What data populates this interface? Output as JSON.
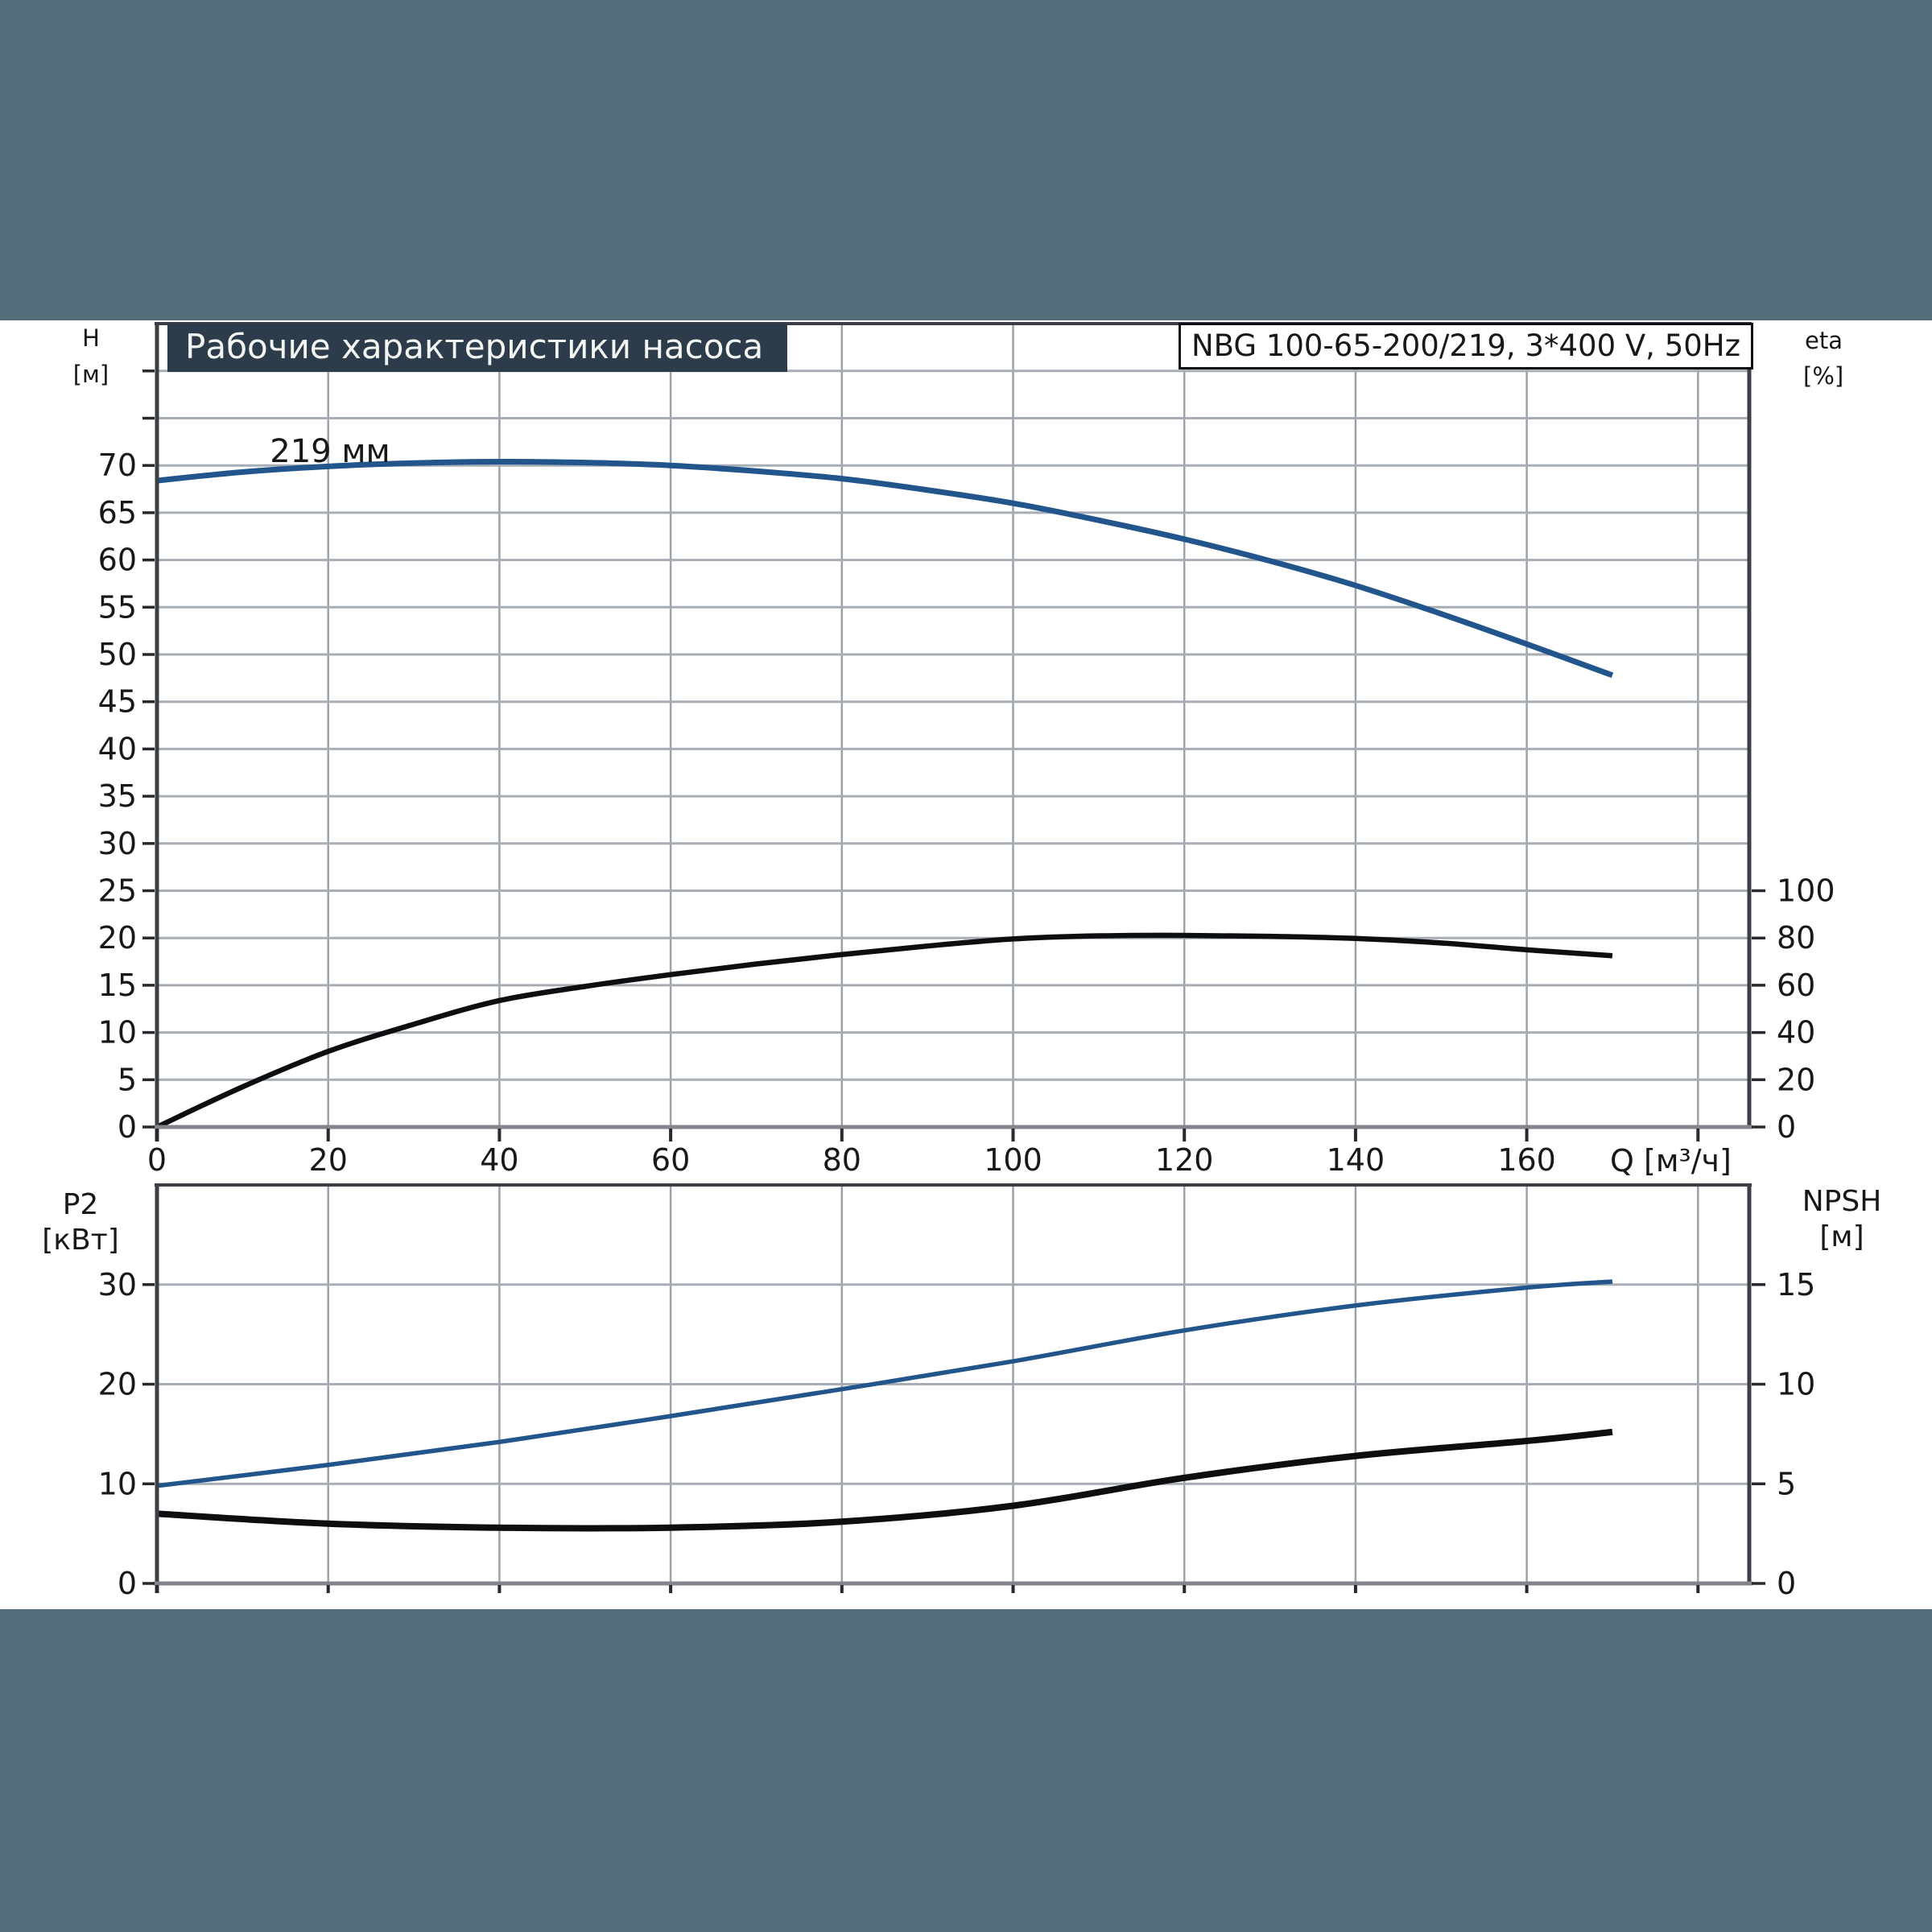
{
  "page": {
    "band_color": "#536d7b",
    "title_bar_bg": "#2d3c4b",
    "title_bar_fg": "#f4f6f3",
    "accent_blue": "#22558c"
  },
  "header": {
    "title": "Рабочие характеристики насоса",
    "pump_label": "NBG 100-65-200/219, 3*400 V, 50Hz"
  },
  "axes": {
    "h_symbol": "H",
    "h_unit": "[м]",
    "eta_symbol": "eta",
    "eta_unit": "[%]",
    "p2_symbol": "P2",
    "p2_unit": "[кВт]",
    "npsh_symbol": "NPSH",
    "npsh_unit": "[м]",
    "q_label": "Q [м³/ч]"
  },
  "impeller_label": "219 мм",
  "chart_data": [
    {
      "id": "pump-performance",
      "type": "line",
      "x_axis": {
        "label": "Q [м³/ч]",
        "min": 0,
        "max": 186,
        "gridline_step": 20,
        "tick_values": [
          0,
          20,
          40,
          60,
          80,
          100,
          120,
          140,
          160,
          180
        ],
        "tick_labels": [
          0,
          20,
          40,
          60,
          80,
          100,
          120,
          140,
          160
        ]
      },
      "y_left": {
        "label": "H [м]",
        "min": 0,
        "max": 85,
        "gridline_step": 5,
        "tick_labels": [
          0,
          5,
          10,
          15,
          20,
          25,
          30,
          35,
          40,
          45,
          50,
          55,
          60,
          65,
          70
        ]
      },
      "y_right": {
        "label": "eta [%]",
        "min": 0,
        "max": 100,
        "tick_labels": [
          0,
          20,
          40,
          60,
          80,
          100
        ],
        "left_equiv_per_unit": 0.25
      },
      "series": [
        {
          "name": "head-curve",
          "impeller": "219 мм",
          "color": "#22558c",
          "width": 7,
          "axis": "left",
          "points": [
            [
              0,
              68.4
            ],
            [
              10,
              69.3
            ],
            [
              20,
              69.9
            ],
            [
              30,
              70.25
            ],
            [
              40,
              70.4
            ],
            [
              50,
              70.3
            ],
            [
              60,
              70.0
            ],
            [
              70,
              69.4
            ],
            [
              80,
              68.6
            ],
            [
              90,
              67.4
            ],
            [
              100,
              66.0
            ],
            [
              110,
              64.2
            ],
            [
              120,
              62.2
            ],
            [
              130,
              59.9
            ],
            [
              140,
              57.3
            ],
            [
              150,
              54.3
            ],
            [
              160,
              51.1
            ],
            [
              170,
              47.8
            ]
          ]
        },
        {
          "name": "efficiency-curve",
          "color": "#0d0e10",
          "width": 6.5,
          "axis": "right",
          "points": [
            [
              0,
              0
            ],
            [
              10,
              17
            ],
            [
              20,
              32
            ],
            [
              30,
              43.5
            ],
            [
              40,
              53.5
            ],
            [
              50,
              59.5
            ],
            [
              60,
              64.5
            ],
            [
              70,
              69
            ],
            [
              80,
              73
            ],
            [
              90,
              76.6
            ],
            [
              100,
              79.6
            ],
            [
              110,
              80.9
            ],
            [
              120,
              81.1
            ],
            [
              130,
              80.7
            ],
            [
              140,
              79.8
            ],
            [
              150,
              77.9
            ],
            [
              160,
              75.0
            ],
            [
              170,
              72.5
            ]
          ]
        }
      ]
    },
    {
      "id": "power-npsh",
      "type": "line",
      "x_axis": {
        "min": 0,
        "max": 186,
        "gridline_step": 20,
        "tick_values": [
          0,
          20,
          40,
          60,
          80,
          100,
          120,
          140,
          160,
          180
        ],
        "tick_labels": []
      },
      "y_left": {
        "label": "P2 [кВт]",
        "min": 0,
        "max": 40,
        "gridline_step": 10,
        "tick_labels": [
          0,
          10,
          20,
          30
        ]
      },
      "y_right": {
        "label": "NPSH [м]",
        "min": 0,
        "max": 20,
        "tick_labels": [
          0,
          5,
          10,
          15
        ],
        "left_equiv_per_unit": 2
      },
      "series": [
        {
          "name": "p2-curve",
          "color": "#22558c",
          "width": 5.5,
          "axis": "left",
          "points": [
            [
              0,
              9.8
            ],
            [
              20,
              11.9
            ],
            [
              40,
              14.2
            ],
            [
              60,
              16.8
            ],
            [
              80,
              19.5
            ],
            [
              100,
              22.3
            ],
            [
              120,
              25.4
            ],
            [
              140,
              27.9
            ],
            [
              160,
              29.7
            ],
            [
              170,
              30.3
            ]
          ]
        },
        {
          "name": "npsh-curve",
          "color": "#0d0e10",
          "width": 8,
          "axis": "right",
          "points": [
            [
              0,
              3.5
            ],
            [
              20,
              3.0
            ],
            [
              40,
              2.8
            ],
            [
              60,
              2.8
            ],
            [
              80,
              3.1
            ],
            [
              100,
              3.9
            ],
            [
              120,
              5.3
            ],
            [
              140,
              6.4
            ],
            [
              160,
              7.15
            ],
            [
              170,
              7.6
            ]
          ]
        }
      ]
    }
  ]
}
